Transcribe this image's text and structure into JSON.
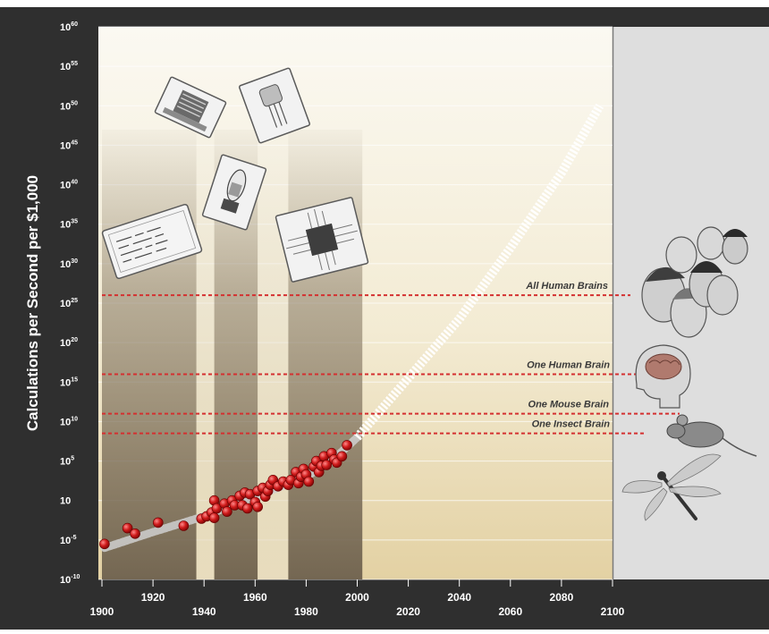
{
  "chart_data": {
    "type": "scatter",
    "title": "",
    "ylabel": "Calculations per Second per $1,000",
    "xlabel": "",
    "scale": "log",
    "x_ticks": [
      "1900",
      "1920",
      "1940",
      "1960",
      "1980",
      "2000",
      "2020",
      "2040",
      "2060",
      "2080",
      "2100"
    ],
    "y_ticks": [
      {
        "base": "10",
        "exp": "-10",
        "value": -10
      },
      {
        "base": "10",
        "exp": "-5",
        "value": -5
      },
      {
        "base": "10",
        "exp": "",
        "value": 0
      },
      {
        "base": "10",
        "exp": "5",
        "value": 5
      },
      {
        "base": "10",
        "exp": "10",
        "value": 10
      },
      {
        "base": "10",
        "exp": "15",
        "value": 15
      },
      {
        "base": "10",
        "exp": "20",
        "value": 20
      },
      {
        "base": "10",
        "exp": "25",
        "value": 25
      },
      {
        "base": "10",
        "exp": "30",
        "value": 30
      },
      {
        "base": "10",
        "exp": "35",
        "value": 35
      },
      {
        "base": "10",
        "exp": "40",
        "value": 40
      },
      {
        "base": "10",
        "exp": "45",
        "value": 45
      },
      {
        "base": "10",
        "exp": "50",
        "value": 50
      },
      {
        "base": "10",
        "exp": "55",
        "value": 55
      },
      {
        "base": "10",
        "exp": "60",
        "value": 60
      }
    ],
    "xlim": [
      1900,
      2100
    ],
    "ylim_log10": [
      -10,
      60
    ],
    "grid": true,
    "series": [
      {
        "name": "",
        "color": "#c8102e",
        "points": [
          [
            1901,
            -5.5
          ],
          [
            1910,
            -3.5
          ],
          [
            1913,
            -4.2
          ],
          [
            1922,
            -2.8
          ],
          [
            1932,
            -3.2
          ],
          [
            1939,
            -2.3
          ],
          [
            1941,
            -2.0
          ],
          [
            1943,
            -1.5
          ],
          [
            1944,
            -2.2
          ],
          [
            1944,
            0.0
          ],
          [
            1945,
            -1.0
          ],
          [
            1948,
            -0.4
          ],
          [
            1949,
            -1.4
          ],
          [
            1951,
            0.0
          ],
          [
            1952,
            -0.6
          ],
          [
            1954,
            0.6
          ],
          [
            1955,
            -0.6
          ],
          [
            1956,
            1.0
          ],
          [
            1957,
            -1.0
          ],
          [
            1958,
            0.8
          ],
          [
            1960,
            -0.2
          ],
          [
            1961,
            -0.8
          ],
          [
            1961,
            1.2
          ],
          [
            1963,
            1.6
          ],
          [
            1964,
            0.5
          ],
          [
            1965,
            1.2
          ],
          [
            1966,
            2.0
          ],
          [
            1967,
            2.6
          ],
          [
            1969,
            1.8
          ],
          [
            1971,
            2.4
          ],
          [
            1973,
            2.0
          ],
          [
            1974,
            2.6
          ],
          [
            1976,
            3.6
          ],
          [
            1977,
            2.2
          ],
          [
            1978,
            3.0
          ],
          [
            1979,
            4.0
          ],
          [
            1980,
            3.3
          ],
          [
            1981,
            2.4
          ],
          [
            1983,
            4.3
          ],
          [
            1984,
            5.0
          ],
          [
            1985,
            3.6
          ],
          [
            1986,
            4.4
          ],
          [
            1987,
            5.6
          ],
          [
            1988,
            4.5
          ],
          [
            1990,
            6.0
          ],
          [
            1991,
            5.2
          ],
          [
            1992,
            4.8
          ],
          [
            1994,
            5.6
          ],
          [
            1996,
            7.0
          ]
        ]
      }
    ],
    "trend": {
      "historical": [
        [
          1901,
          -6
        ],
        [
          1920,
          -4
        ],
        [
          1940,
          -2
        ],
        [
          1960,
          0.5
        ],
        [
          1980,
          3
        ],
        [
          1990,
          5
        ],
        [
          2000,
          8
        ]
      ],
      "projected": [
        [
          2000,
          8
        ],
        [
          2020,
          15.5
        ],
        [
          2040,
          23
        ],
        [
          2060,
          32
        ],
        [
          2080,
          41.5
        ],
        [
          2095,
          50
        ]
      ]
    },
    "thresholds": [
      {
        "label": "All Human Brains",
        "value": 26,
        "color": "#d43030"
      },
      {
        "label": "One Human Brain",
        "value": 16,
        "color": "#d43030"
      },
      {
        "label": "One Mouse Brain",
        "value": 11,
        "color": "#d43030"
      },
      {
        "label": "One Insect Brain",
        "value": 8.5,
        "color": "#d43030"
      }
    ],
    "eras": [
      {
        "icon": "electromechanical-card-icon",
        "from": 1900,
        "to": 1937
      },
      {
        "icon": "relay-icon",
        "from": 1937,
        "to": 1944
      },
      {
        "icon": "vacuum-tube-icon",
        "from": 1944,
        "to": 1961
      },
      {
        "icon": "transistor-icon",
        "from": 1961,
        "to": 1973
      },
      {
        "icon": "integrated-circuit-icon",
        "from": 1973,
        "to": 2002
      }
    ],
    "colors": {
      "frame": "#333333",
      "plot_top": "#fbf9f2",
      "plot_bottom": "#e6d6ac",
      "right_panel": "#dcdcdc",
      "point": "#c8102e",
      "threshold": "#d43030"
    }
  }
}
